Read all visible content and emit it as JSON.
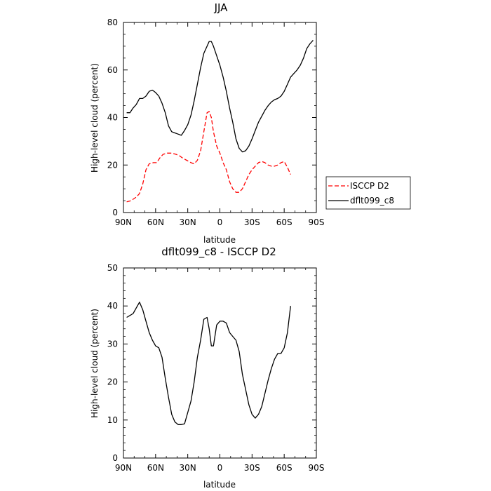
{
  "chart_data": [
    {
      "type": "line",
      "title": "JJA",
      "xlabel": "latitude",
      "ylabel": "High-level cloud (percent)",
      "xlim": [
        -90,
        90
      ],
      "ylim": [
        0,
        80
      ],
      "x_ticks": [
        -90,
        -60,
        -30,
        0,
        30,
        60,
        90
      ],
      "x_tick_labels": [
        "90N",
        "60N",
        "30N",
        "0",
        "30S",
        "60S",
        "90S"
      ],
      "y_ticks": [
        0,
        20,
        40,
        60,
        80
      ],
      "y_tick_labels": [
        "0",
        "20",
        "40",
        "60",
        "80"
      ],
      "grid": false,
      "legend_position": "right",
      "series": [
        {
          "name": "ISCCP D2",
          "color": "#ff0000",
          "style": "dashed",
          "x": [
            -87,
            -83,
            -78,
            -75,
            -72,
            -69,
            -66,
            -62,
            -59,
            -56,
            -53,
            -49,
            -45,
            -41,
            -38,
            -35,
            -31,
            -27,
            -24,
            -21,
            -18,
            -15,
            -12,
            -10,
            -8,
            -6,
            -3,
            0,
            3,
            6,
            9,
            12,
            15,
            18,
            21,
            24,
            27,
            30,
            33,
            36,
            39,
            42,
            45,
            48,
            51,
            54,
            57,
            60,
            63,
            66
          ],
          "y": [
            4.5,
            5.0,
            6.5,
            8.0,
            12,
            18,
            20.5,
            21,
            21,
            23,
            24.5,
            25,
            25,
            24.5,
            24,
            23,
            22,
            21,
            20.5,
            22,
            26,
            34,
            42,
            42.5,
            40,
            34,
            28,
            25,
            21,
            18,
            13,
            10,
            8.5,
            8.5,
            10,
            13,
            16,
            18,
            19.5,
            21,
            21.5,
            21,
            20,
            19.5,
            19.5,
            20,
            21,
            21.5,
            19,
            16
          ]
        },
        {
          "name": "dflt099_c8",
          "color": "#000000",
          "style": "solid",
          "x": [
            -87,
            -84,
            -81,
            -78,
            -75,
            -72,
            -69,
            -66,
            -63,
            -60,
            -57,
            -54,
            -51,
            -48,
            -45,
            -42,
            -39,
            -36,
            -33,
            -30,
            -27,
            -24,
            -21,
            -18,
            -15,
            -12,
            -10,
            -8,
            -6,
            -3,
            0,
            3,
            6,
            9,
            12,
            15,
            18,
            21,
            24,
            27,
            30,
            33,
            36,
            39,
            42,
            45,
            48,
            51,
            54,
            57,
            60,
            63,
            66,
            69,
            72,
            75,
            78,
            81,
            84,
            87
          ],
          "y": [
            42,
            42,
            44,
            45.5,
            48,
            48,
            49,
            51,
            51.5,
            50.5,
            49,
            46,
            42,
            36.5,
            34,
            33.5,
            33,
            32.5,
            34.5,
            37,
            41,
            47,
            54,
            61,
            67,
            70,
            72,
            72,
            70,
            66,
            62,
            57,
            51,
            44,
            38,
            31,
            27,
            25.5,
            26,
            28,
            31,
            34.5,
            38,
            40.5,
            43,
            45,
            46.5,
            47.5,
            48,
            49,
            51,
            54,
            57,
            58.5,
            60,
            62,
            65,
            69,
            71,
            72.5
          ]
        }
      ]
    },
    {
      "type": "line",
      "title": "dflt099_c8 - ISCCP D2",
      "xlabel": "latitude",
      "ylabel": "High-level cloud (percent)",
      "xlim": [
        -90,
        90
      ],
      "ylim": [
        0,
        50
      ],
      "x_ticks": [
        -90,
        -60,
        -30,
        0,
        30,
        60,
        90
      ],
      "x_tick_labels": [
        "90N",
        "60N",
        "30N",
        "0",
        "30S",
        "60S",
        "90S"
      ],
      "y_ticks": [
        0,
        10,
        20,
        30,
        40,
        50
      ],
      "y_tick_labels": [
        "0",
        "10",
        "20",
        "30",
        "40",
        "50"
      ],
      "grid": false,
      "series": [
        {
          "color": "#000000",
          "style": "solid",
          "x": [
            -87,
            -84,
            -81,
            -78,
            -75,
            -72,
            -69,
            -66,
            -63,
            -60,
            -57,
            -54,
            -51,
            -48,
            -45,
            -42,
            -39,
            -36,
            -33,
            -30,
            -27,
            -24,
            -21,
            -18,
            -15,
            -12,
            -10,
            -8,
            -6,
            -3,
            0,
            3,
            6,
            9,
            12,
            15,
            18,
            21,
            24,
            27,
            30,
            33,
            36,
            39,
            42,
            45,
            48,
            51,
            54,
            57,
            60,
            63,
            66
          ],
          "y": [
            37,
            37.5,
            38,
            39.5,
            41,
            39,
            36,
            33,
            31,
            29.5,
            29,
            26.5,
            21,
            16,
            11.5,
            9.5,
            8.8,
            8.8,
            9,
            12,
            15,
            20,
            26.5,
            31,
            36.5,
            37,
            34,
            29.5,
            29.5,
            35,
            36,
            36,
            35.5,
            33,
            32,
            31,
            28,
            22,
            18,
            14,
            11.5,
            10.5,
            11.5,
            13.5,
            17,
            20.5,
            23.5,
            26,
            27.5,
            27.5,
            29,
            33,
            40
          ]
        }
      ]
    }
  ],
  "legend": {
    "items": [
      {
        "label": "ISCCP D2",
        "color": "#ff0000",
        "style": "dashed"
      },
      {
        "label": "dflt099_c8",
        "color": "#000000",
        "style": "solid"
      }
    ]
  }
}
